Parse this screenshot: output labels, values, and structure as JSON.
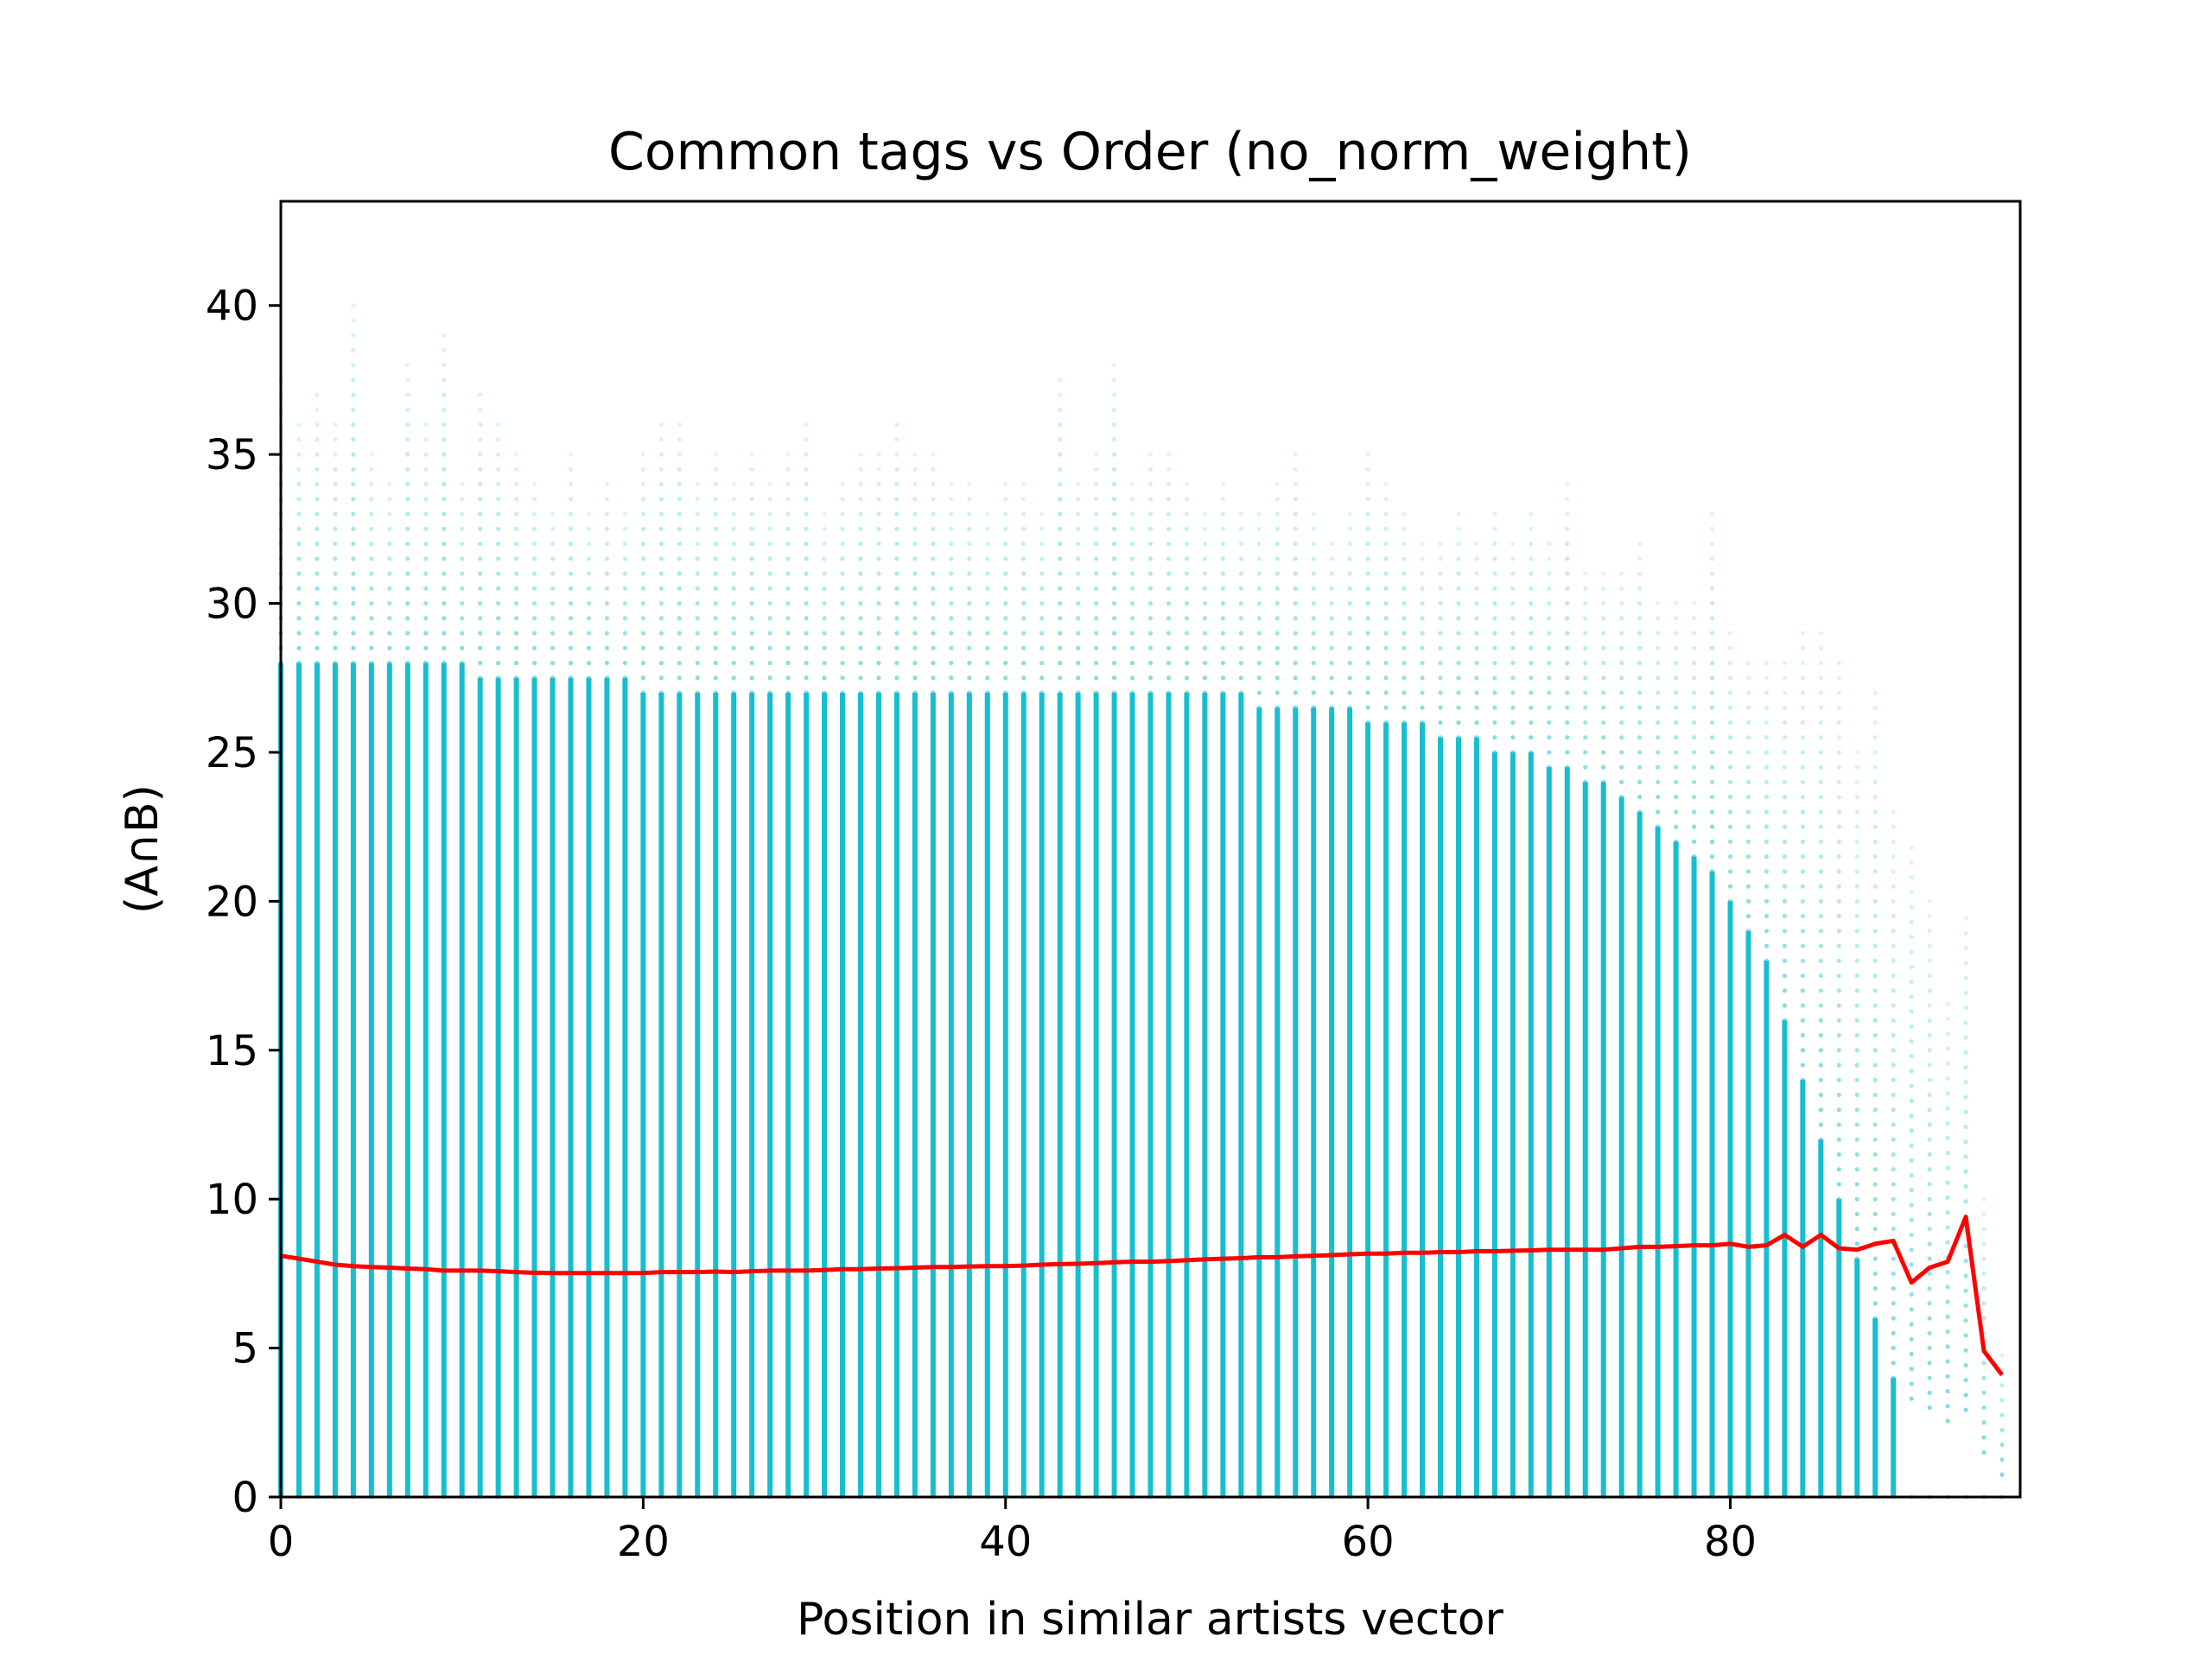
{
  "chart_data": {
    "type": "scatter",
    "title": "Common tags vs Order (no_norm_weight)",
    "xlabel": "Position in similar artists vector",
    "ylabel": "(A∩B)",
    "xlim": [
      0,
      96
    ],
    "ylim": [
      0,
      43.5
    ],
    "xticks": [
      0,
      20,
      40,
      60,
      80
    ],
    "yticks": [
      0,
      5,
      10,
      15,
      20,
      25,
      30,
      35,
      40
    ],
    "grid": false,
    "legend": "none",
    "colors": {
      "scatter": "#17becf",
      "mean_line": "#ff0000",
      "axes": "#000000"
    },
    "scatter_columns": {
      "x": [
        0,
        1,
        2,
        3,
        4,
        5,
        6,
        7,
        8,
        9,
        10,
        11,
        12,
        13,
        14,
        15,
        16,
        17,
        18,
        19,
        20,
        21,
        22,
        23,
        24,
        25,
        26,
        27,
        28,
        29,
        30,
        31,
        32,
        33,
        34,
        35,
        36,
        37,
        38,
        39,
        40,
        41,
        42,
        43,
        44,
        45,
        46,
        47,
        48,
        49,
        50,
        51,
        52,
        53,
        54,
        55,
        56,
        57,
        58,
        59,
        60,
        61,
        62,
        63,
        64,
        65,
        66,
        67,
        68,
        69,
        70,
        71,
        72,
        73,
        74,
        75,
        76,
        77,
        78,
        79,
        80,
        81,
        82,
        83,
        84,
        85,
        86,
        87,
        88,
        89,
        90,
        91,
        92,
        93,
        94,
        95
      ],
      "dense_max": [
        28,
        28,
        28,
        28,
        28,
        28,
        28,
        28,
        28,
        28,
        28,
        27.5,
        27.5,
        27.5,
        27.5,
        27.5,
        27.5,
        27.5,
        27.5,
        27.5,
        27,
        27,
        27,
        27,
        27,
        27,
        27,
        27,
        27,
        27,
        27,
        27,
        27,
        27,
        27,
        27,
        27,
        27,
        27,
        27,
        27,
        27,
        27,
        27,
        27,
        27,
        27,
        27,
        27,
        27,
        27,
        27,
        27,
        27,
        26.5,
        26.5,
        26.5,
        26.5,
        26.5,
        26.5,
        26,
        26,
        26,
        26,
        25.5,
        25.5,
        25.5,
        25,
        25,
        25,
        24.5,
        24.5,
        24,
        24,
        23.5,
        23,
        22.5,
        22,
        21.5,
        21,
        20,
        19,
        18,
        16,
        14,
        12,
        10,
        8,
        6,
        4,
        0,
        0,
        0,
        0,
        0,
        0
      ],
      "max": [
        37.5,
        36,
        37,
        36,
        40,
        35,
        34,
        38,
        36,
        39,
        34,
        37,
        36,
        35,
        34,
        33,
        35,
        33,
        34,
        33,
        35,
        36,
        36,
        34,
        35,
        34,
        35,
        34,
        35,
        36,
        33,
        34,
        35,
        35,
        36,
        35,
        35,
        34,
        34,
        33,
        34,
        34,
        33,
        37.5,
        34,
        35,
        38,
        34,
        35,
        35,
        34,
        33,
        34,
        33,
        33,
        34,
        35,
        33,
        32,
        33,
        35,
        34,
        33,
        32,
        32,
        33,
        32,
        33,
        32,
        33,
        32,
        34,
        31,
        31,
        31,
        32,
        30,
        30,
        30,
        33,
        29,
        28,
        28,
        28,
        29,
        29,
        28,
        25,
        27,
        23,
        22,
        20,
        17,
        19.5,
        10,
        5
      ]
    },
    "series": [
      {
        "values": [
          8.1,
          8.0,
          7.9,
          7.8,
          7.75,
          7.72,
          7.7,
          7.67,
          7.65,
          7.6,
          7.6,
          7.6,
          7.58,
          7.55,
          7.53,
          7.52,
          7.52,
          7.52,
          7.52,
          7.52,
          7.52,
          7.55,
          7.55,
          7.55,
          7.57,
          7.55,
          7.58,
          7.6,
          7.6,
          7.6,
          7.62,
          7.65,
          7.65,
          7.67,
          7.68,
          7.7,
          7.72,
          7.72,
          7.74,
          7.75,
          7.75,
          7.77,
          7.8,
          7.82,
          7.83,
          7.85,
          7.88,
          7.9,
          7.9,
          7.92,
          7.95,
          7.98,
          8.0,
          8.02,
          8.05,
          8.05,
          8.08,
          8.1,
          8.12,
          8.15,
          8.17,
          8.17,
          8.2,
          8.2,
          8.22,
          8.22,
          8.25,
          8.25,
          8.27,
          8.28,
          8.3,
          8.3,
          8.3,
          8.3,
          8.35,
          8.4,
          8.4,
          8.42,
          8.45,
          8.45,
          8.5,
          8.4,
          8.45,
          8.8,
          8.4,
          8.8,
          8.35,
          8.3,
          8.5,
          8.6,
          7.2,
          7.7,
          7.9,
          9.4,
          4.9,
          4.1
        ]
      }
    ]
  }
}
